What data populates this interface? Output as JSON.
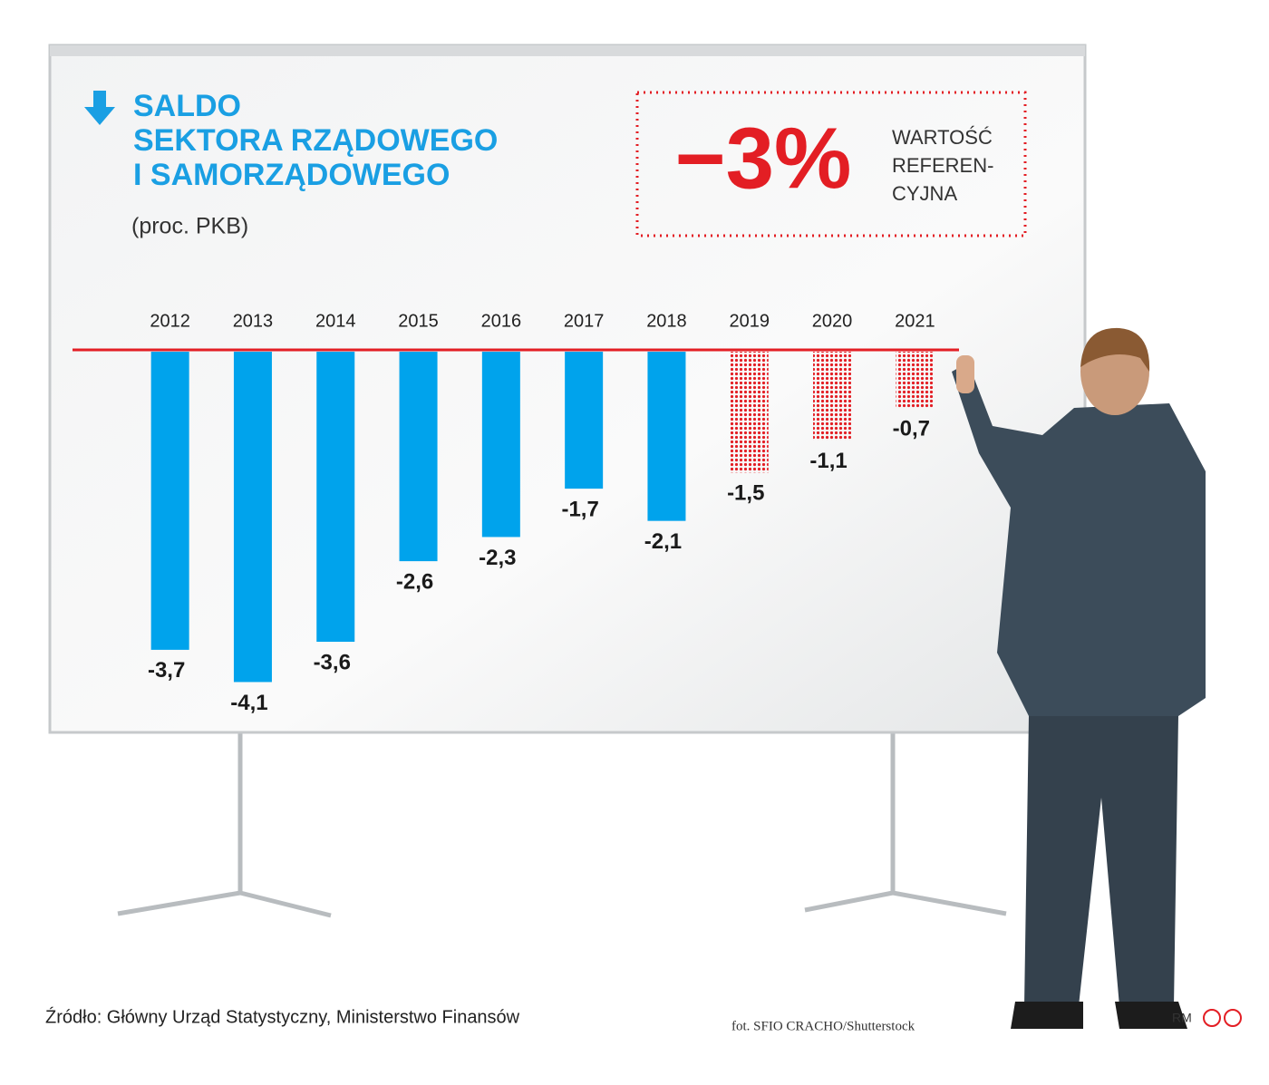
{
  "chart_data": {
    "type": "bar",
    "title_lines": [
      "SALDO",
      "SEKTORA RZĄDOWEGO",
      "I SAMORZĄDOWEGO"
    ],
    "subtitle": "(proc. PKB)",
    "reference": {
      "label": "−3%",
      "text_lines": [
        "WARTOŚĆ",
        "REFEREN-",
        "CYJNA"
      ]
    },
    "categories": [
      "2012",
      "2013",
      "2014",
      "2015",
      "2016",
      "2017",
      "2018",
      "2019",
      "2020",
      "2021"
    ],
    "values": [
      -3.7,
      -4.1,
      -3.6,
      -2.6,
      -2.3,
      -1.7,
      -2.1,
      -1.5,
      -1.1,
      -0.7
    ],
    "value_labels": [
      "-3,7",
      "-4,1",
      "-3,6",
      "-2,6",
      "-2,3",
      "-1,7",
      "-2,1",
      "-1,5",
      "-1,1",
      "-0,7"
    ],
    "colors": [
      "#00a3ec",
      "#00a3ec",
      "#00a3ec",
      "#00a3ec",
      "#00a3ec",
      "#00a3ec",
      "#00a3ec",
      "#e31e24",
      "#e31e24",
      "#e31e24"
    ],
    "styles": [
      "solid",
      "solid",
      "solid",
      "solid",
      "solid",
      "solid",
      "solid",
      "dotted",
      "dotted",
      "dotted"
    ],
    "ylim": [
      -4.5,
      0
    ],
    "source": "Źródło: Główny Urząd Statystyczny, Ministerstwo Finansów",
    "photo_credit": "fot. SFIO CRACHO/Shutterstock",
    "author": "RM"
  }
}
